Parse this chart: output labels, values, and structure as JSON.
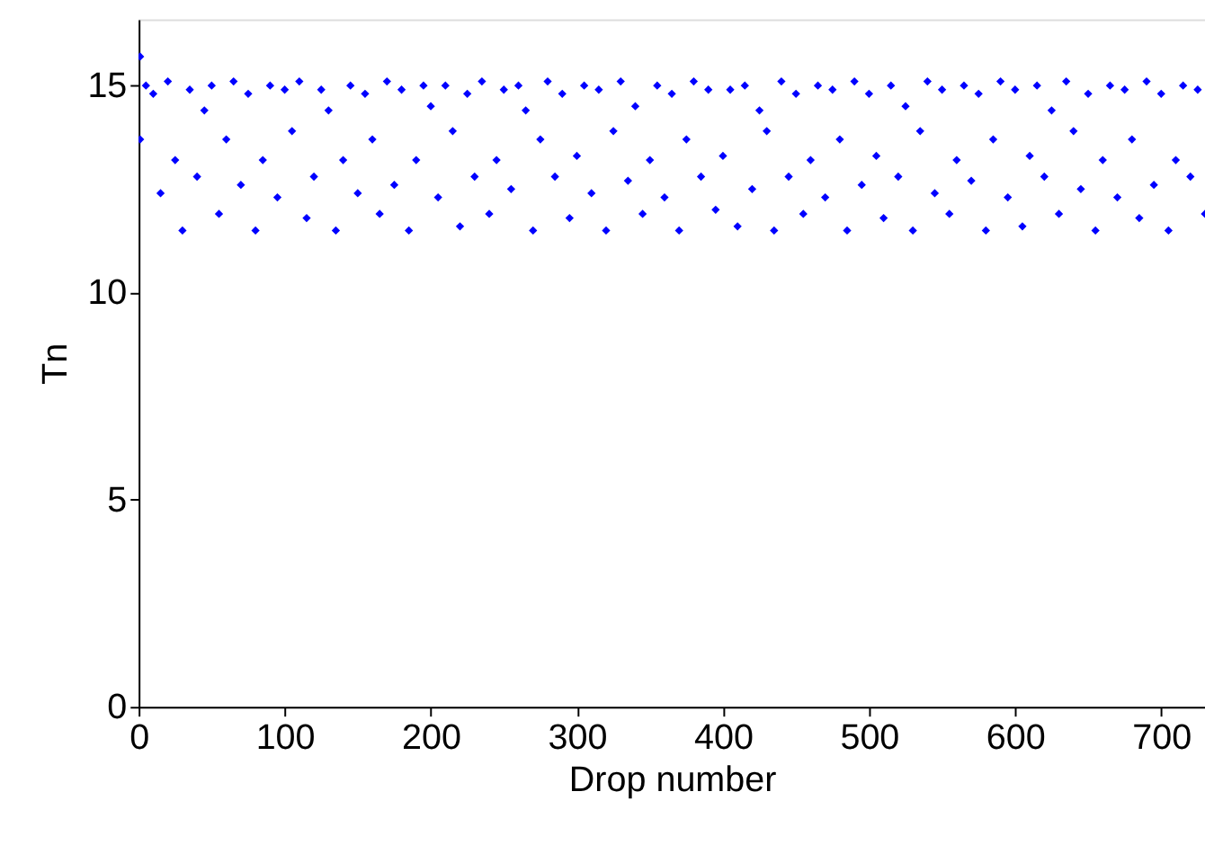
{
  "chart_data": {
    "type": "scatter",
    "xlabel": "Drop number",
    "ylabel": "Tn",
    "marker": "diamond",
    "xlim": [
      0,
      730
    ],
    "ylim": [
      0,
      16.6
    ],
    "xticks": [
      0,
      100,
      200,
      300,
      400,
      500,
      600,
      700
    ],
    "yticks": [
      0,
      5,
      10,
      15
    ],
    "series": [
      {
        "color": "#0000ff",
        "x": [
          1,
          1,
          5,
          10,
          15,
          20,
          25,
          30,
          35,
          40,
          45,
          50,
          55,
          60,
          65,
          70,
          75,
          80,
          85,
          90,
          95,
          100,
          105,
          110,
          115,
          120,
          125,
          130,
          135,
          140,
          145,
          150,
          155,
          160,
          165,
          170,
          175,
          180,
          185,
          190,
          195,
          200,
          205,
          210,
          215,
          220,
          225,
          230,
          235,
          240,
          245,
          250,
          255,
          260,
          265,
          270,
          275,
          280,
          285,
          290,
          295,
          300,
          305,
          310,
          315,
          320,
          325,
          330,
          335,
          340,
          345,
          350,
          355,
          360,
          365,
          370,
          375,
          380,
          385,
          390,
          395,
          400,
          405,
          410,
          415,
          420,
          425,
          430,
          435,
          440,
          445,
          450,
          455,
          460,
          465,
          470,
          475,
          480,
          485,
          490,
          495,
          500,
          505,
          510,
          515,
          520,
          525,
          530,
          535,
          540,
          545,
          550,
          555,
          560,
          565,
          570,
          575,
          580,
          585,
          590,
          595,
          600,
          605,
          610,
          615,
          620,
          625,
          630,
          635,
          640,
          645,
          650,
          655,
          660,
          665,
          670,
          675,
          680,
          685,
          690,
          695,
          700,
          705,
          710,
          715,
          720,
          725,
          730
        ],
        "values": [
          15.7,
          13.7,
          15.0,
          14.8,
          12.4,
          15.1,
          13.2,
          11.5,
          14.9,
          12.8,
          14.4,
          15.0,
          11.9,
          13.7,
          15.1,
          12.6,
          14.8,
          11.5,
          13.2,
          15.0,
          12.3,
          14.9,
          13.9,
          15.1,
          11.8,
          12.8,
          14.9,
          14.4,
          11.5,
          13.2,
          15.0,
          12.4,
          14.8,
          13.7,
          11.9,
          15.1,
          12.6,
          14.9,
          11.5,
          13.2,
          15.0,
          14.5,
          12.3,
          15.0,
          13.9,
          11.6,
          14.8,
          12.8,
          15.1,
          11.9,
          13.2,
          14.9,
          12.5,
          15.0,
          14.4,
          11.5,
          13.7,
          15.1,
          12.8,
          14.8,
          11.8,
          13.3,
          15.0,
          12.4,
          14.9,
          11.5,
          13.9,
          15.1,
          12.7,
          14.5,
          11.9,
          13.2,
          15.0,
          12.3,
          14.8,
          11.5,
          13.7,
          15.1,
          12.8,
          14.9,
          12.0,
          13.3,
          14.9,
          11.6,
          15.0,
          12.5,
          14.4,
          13.9,
          11.5,
          15.1,
          12.8,
          14.8,
          11.9,
          13.2,
          15.0,
          12.3,
          14.9,
          13.7,
          11.5,
          15.1,
          12.6,
          14.8,
          13.3,
          11.8,
          15.0,
          12.8,
          14.5,
          11.5,
          13.9,
          15.1,
          12.4,
          14.9,
          11.9,
          13.2,
          15.0,
          12.7,
          14.8,
          11.5,
          13.7,
          15.1,
          12.3,
          14.9,
          11.6,
          13.3,
          15.0,
          12.8,
          14.4,
          11.9,
          15.1,
          13.9,
          12.5,
          14.8,
          11.5,
          13.2,
          15.0,
          12.3,
          14.9,
          13.7,
          11.8,
          15.1,
          12.6,
          14.8,
          11.5,
          13.2,
          15.0,
          12.8,
          14.9,
          11.9
        ]
      }
    ]
  }
}
